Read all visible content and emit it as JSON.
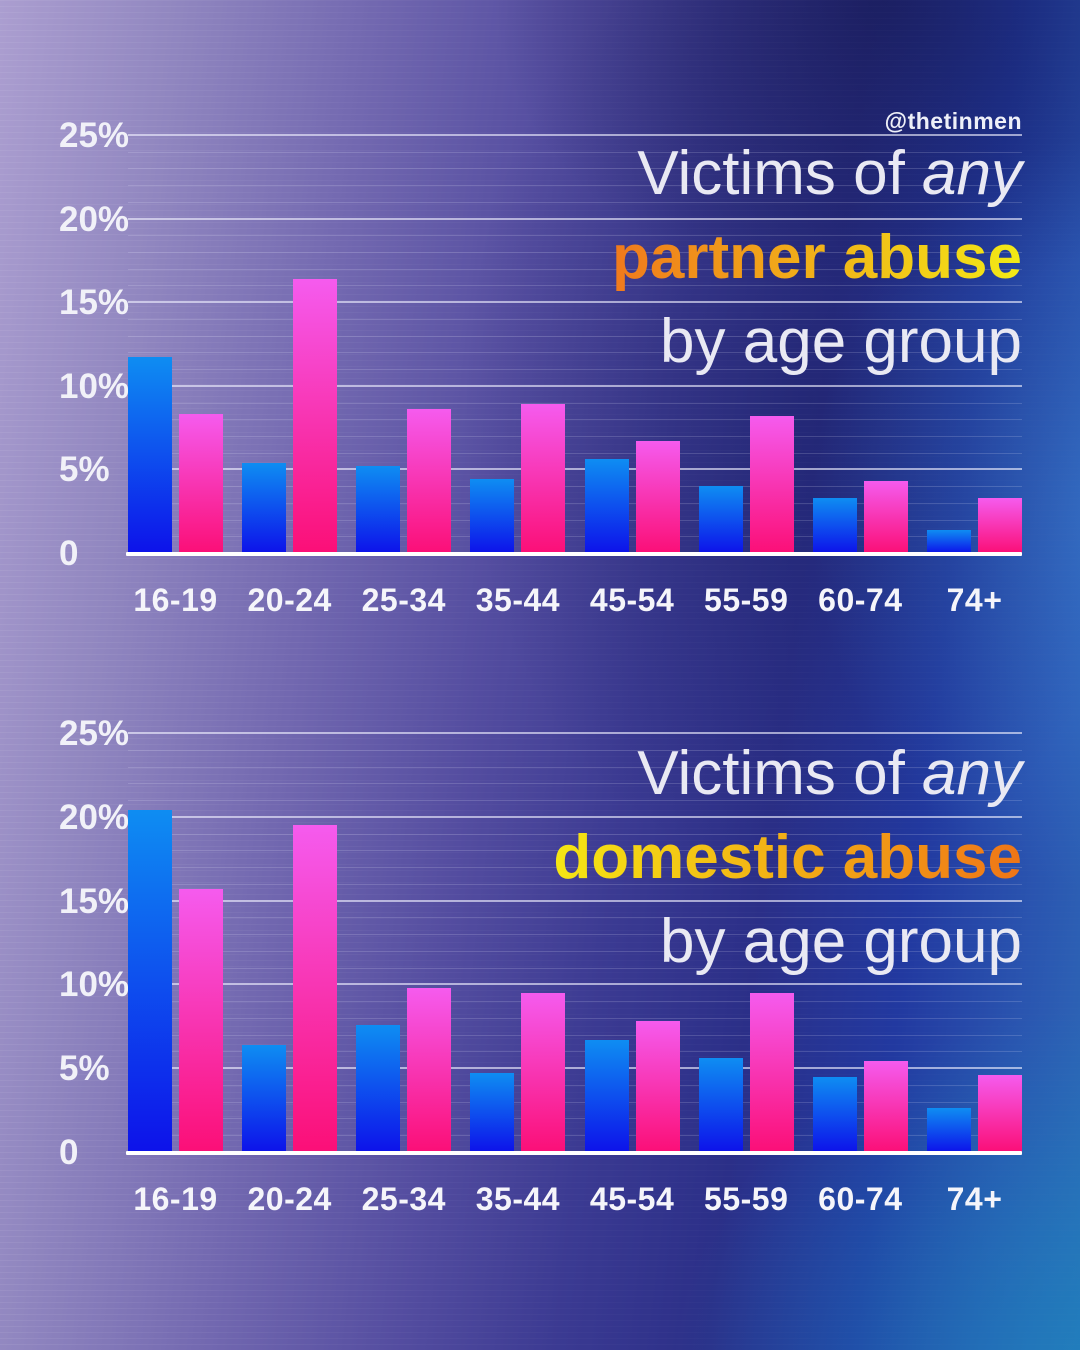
{
  "watermark": "@thetinmen",
  "colors": {
    "bar_blue_top": "#0e8df2",
    "bar_blue_bottom": "#0d12ea",
    "bar_pink_top": "#f55bee",
    "bar_pink_bottom": "#fb0f77",
    "axis_white": "#ffffff",
    "title_text": "#e9e9f3"
  },
  "chart_data": [
    {
      "type": "bar",
      "title": "Victims of any partner abuse by age group",
      "title_lines": {
        "line1_regular": "Victims of ",
        "line1_italic": "any",
        "line2_highlight": "partner abuse",
        "line3": "by age group"
      },
      "highlight_gradient": [
        "#f0791c",
        "#f2ea16"
      ],
      "categories": [
        "16-19",
        "20-24",
        "25-34",
        "35-44",
        "45-54",
        "55-59",
        "60-74",
        "74+"
      ],
      "series": [
        {
          "name": "blue bars",
          "values": [
            11.7,
            5.4,
            5.2,
            4.4,
            5.6,
            4.0,
            3.3,
            1.4
          ]
        },
        {
          "name": "pink bars",
          "values": [
            8.3,
            16.4,
            8.6,
            8.9,
            6.7,
            8.2,
            4.3,
            3.3
          ]
        }
      ],
      "xlabel": "",
      "ylabel": "",
      "ylim": [
        0,
        25
      ],
      "yticks": [
        0,
        5,
        10,
        15,
        20,
        25
      ],
      "ytick_labels": [
        "0",
        "5%",
        "10%",
        "15%",
        "20%",
        "25%"
      ],
      "grid": "horizontal major every 5%, minor every 1%",
      "legend": "none"
    },
    {
      "type": "bar",
      "title": "Victims of any domestic abuse by age group",
      "title_lines": {
        "line1_regular": "Victims of ",
        "line1_italic": "any",
        "line2_highlight": "domestic abuse",
        "line3": "by age group"
      },
      "highlight_gradient": [
        "#f5e714",
        "#ef7517"
      ],
      "categories": [
        "16-19",
        "20-24",
        "25-34",
        "35-44",
        "45-54",
        "55-59",
        "60-74",
        "74+"
      ],
      "series": [
        {
          "name": "blue bars",
          "values": [
            20.4,
            6.4,
            7.6,
            4.7,
            6.7,
            5.6,
            4.5,
            2.6
          ]
        },
        {
          "name": "pink bars",
          "values": [
            15.7,
            19.5,
            9.8,
            9.5,
            7.8,
            9.5,
            5.4,
            4.6
          ]
        }
      ],
      "xlabel": "",
      "ylabel": "",
      "ylim": [
        0,
        25
      ],
      "yticks": [
        0,
        5,
        10,
        15,
        20,
        25
      ],
      "ytick_labels": [
        "0",
        "5%",
        "10%",
        "15%",
        "20%",
        "25%"
      ],
      "grid": "horizontal major every 5%, minor every 1%",
      "legend": "none"
    }
  ]
}
